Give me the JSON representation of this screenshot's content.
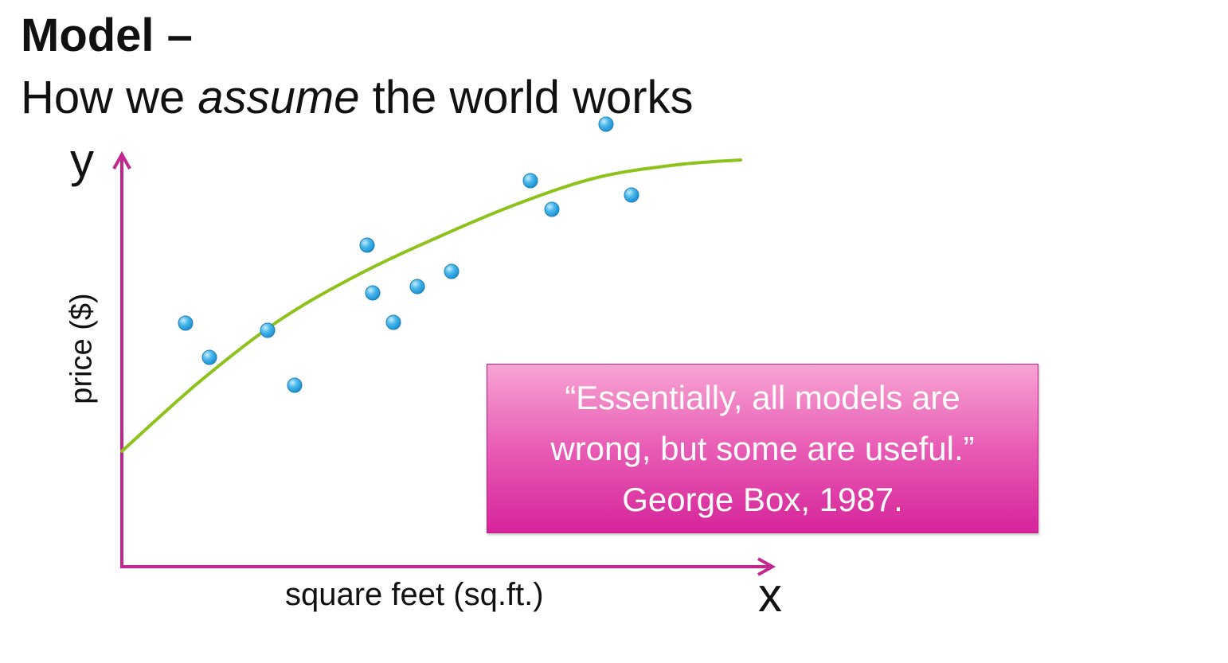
{
  "title": {
    "line1": "Model –",
    "line2_before": "How we ",
    "line2_emphasis": "assume",
    "line2_after": " the world works"
  },
  "axes": {
    "y_letter": "y",
    "x_letter": "x",
    "y_label": "price ($)",
    "x_label": "square feet (sq.ft.)"
  },
  "quote": {
    "line1": "“Essentially, all models are",
    "line2": "wrong, but some are useful.”",
    "line3": "George Box, 1987."
  },
  "colors": {
    "axis": "#c2268f",
    "curve": "#8cc21a",
    "points": "#3fb4ea",
    "quote_box": "#e85cb5"
  },
  "chart_data": {
    "type": "scatter",
    "x": [
      233,
      263,
      336,
      370,
      461,
      468,
      494,
      524,
      567,
      666,
      693,
      761,
      793
    ],
    "y": [
      306,
      263,
      297,
      228,
      404,
      344,
      307,
      352,
      371,
      485,
      449,
      556,
      467
    ],
    "fit_curve": {
      "x": [
        153,
        250,
        350,
        450,
        550,
        650,
        750,
        850,
        930
      ],
      "y": [
        145,
        232,
        309,
        367,
        414,
        456,
        489,
        505,
        511
      ]
    },
    "xlim": [
      153,
      975
    ],
    "ylim": [
      0,
      640
    ],
    "xlabel": "square feet (sq.ft.)",
    "ylabel": "price ($)",
    "grid": false
  }
}
